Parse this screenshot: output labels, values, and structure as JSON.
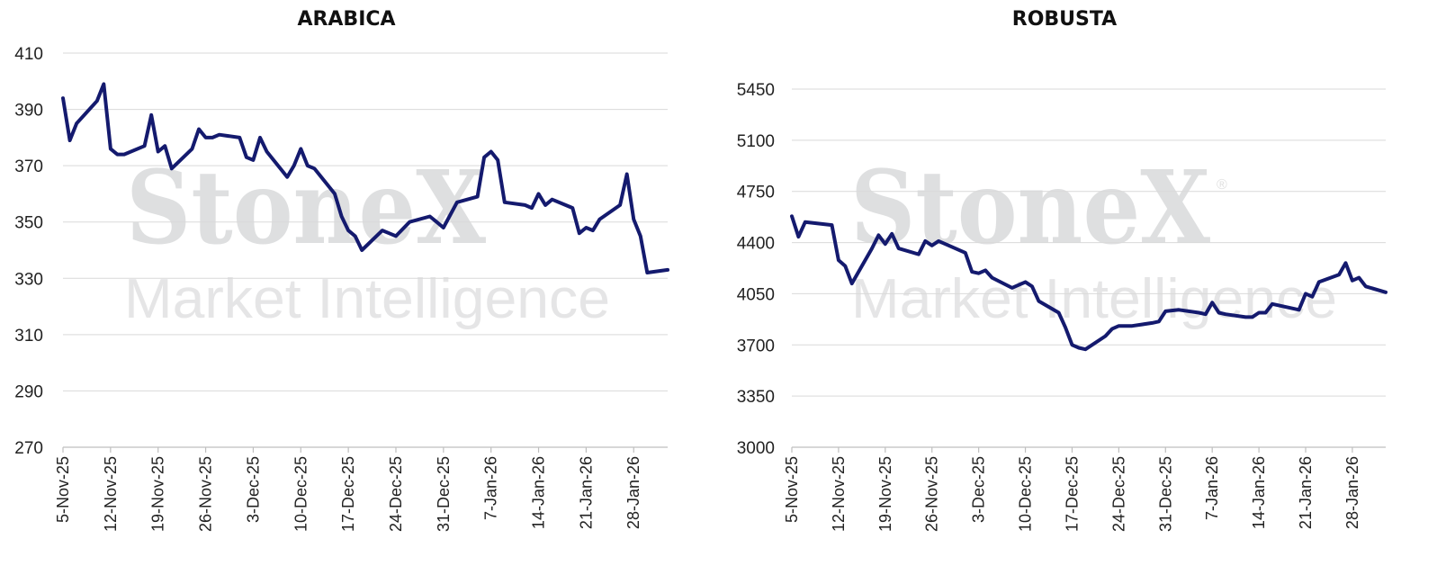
{
  "colors": {
    "series": "#141a6e",
    "watermark": "#dedfe0"
  },
  "watermark": {
    "logo": "StoneX",
    "sub": "Market Intelligence",
    "reg": "®"
  },
  "chart_data": [
    {
      "type": "line",
      "title": "ARABICA",
      "xlabel": "",
      "ylabel": "",
      "ylim": [
        270,
        410
      ],
      "yticks": [
        270,
        290,
        310,
        330,
        350,
        370,
        390,
        410
      ],
      "xlim": [
        "2025-11-05",
        "2026-02-02"
      ],
      "xticks": [
        {
          "date": "2025-11-05",
          "label": "5-Nov-25"
        },
        {
          "date": "2025-11-12",
          "label": "12-Nov-25"
        },
        {
          "date": "2025-11-19",
          "label": "19-Nov-25"
        },
        {
          "date": "2025-11-26",
          "label": "26-Nov-25"
        },
        {
          "date": "2025-12-03",
          "label": "3-Dec-25"
        },
        {
          "date": "2025-12-10",
          "label": "10-Dec-25"
        },
        {
          "date": "2025-12-17",
          "label": "17-Dec-25"
        },
        {
          "date": "2025-12-24",
          "label": "24-Dec-25"
        },
        {
          "date": "2025-12-31",
          "label": "31-Dec-25"
        },
        {
          "date": "2026-01-07",
          "label": "7-Jan-26"
        },
        {
          "date": "2026-01-14",
          "label": "14-Jan-26"
        },
        {
          "date": "2026-01-21",
          "label": "21-Jan-26"
        },
        {
          "date": "2026-01-28",
          "label": "28-Jan-26"
        }
      ],
      "grid": true,
      "series": [
        {
          "x": [
            "2025-11-05",
            "2025-11-06",
            "2025-11-07",
            "2025-11-10",
            "2025-11-11",
            "2025-11-12",
            "2025-11-13",
            "2025-11-14",
            "2025-11-17",
            "2025-11-18",
            "2025-11-19",
            "2025-11-20",
            "2025-11-21",
            "2025-11-24",
            "2025-11-25",
            "2025-11-26",
            "2025-11-27",
            "2025-11-28",
            "2025-12-01",
            "2025-12-02",
            "2025-12-03",
            "2025-12-04",
            "2025-12-05",
            "2025-12-08",
            "2025-12-09",
            "2025-12-10",
            "2025-12-11",
            "2025-12-12",
            "2025-12-15",
            "2025-12-16",
            "2025-12-17",
            "2025-12-18",
            "2025-12-19",
            "2025-12-22",
            "2025-12-23",
            "2025-12-24",
            "2025-12-26",
            "2025-12-29",
            "2025-12-30",
            "2025-12-31",
            "2026-01-02",
            "2026-01-05",
            "2026-01-06",
            "2026-01-07",
            "2026-01-08",
            "2026-01-09",
            "2026-01-12",
            "2026-01-13",
            "2026-01-14",
            "2026-01-15",
            "2026-01-16",
            "2026-01-19",
            "2026-01-20",
            "2026-01-21",
            "2026-01-22",
            "2026-01-23",
            "2026-01-26",
            "2026-01-27",
            "2026-01-28",
            "2026-01-29",
            "2026-01-30",
            "2026-02-02"
          ],
          "y": [
            394,
            379,
            385,
            393,
            399,
            376,
            374,
            374,
            377,
            388,
            375,
            377,
            369,
            376,
            383,
            380,
            380,
            381,
            380,
            373,
            372,
            380,
            375,
            366,
            370,
            376,
            370,
            369,
            360,
            352,
            347,
            345,
            340,
            347,
            346,
            345,
            350,
            352,
            350,
            348,
            357,
            359,
            373,
            375,
            372,
            357,
            356,
            355,
            360,
            356,
            358,
            355,
            346,
            348,
            347,
            351,
            356,
            367,
            351,
            345,
            332,
            333
          ]
        }
      ]
    },
    {
      "type": "line",
      "title": "ROBUSTA",
      "xlabel": "",
      "ylabel": "",
      "ylim": [
        3000,
        5450
      ],
      "yticks": [
        3000,
        3350,
        3700,
        4050,
        4400,
        4750,
        5100,
        5450
      ],
      "xlim": [
        "2025-11-05",
        "2026-02-02"
      ],
      "xticks": [
        {
          "date": "2025-11-05",
          "label": "5-Nov-25"
        },
        {
          "date": "2025-11-12",
          "label": "12-Nov-25"
        },
        {
          "date": "2025-11-19",
          "label": "19-Nov-25"
        },
        {
          "date": "2025-11-26",
          "label": "26-Nov-25"
        },
        {
          "date": "2025-12-03",
          "label": "3-Dec-25"
        },
        {
          "date": "2025-12-10",
          "label": "10-Dec-25"
        },
        {
          "date": "2025-12-17",
          "label": "17-Dec-25"
        },
        {
          "date": "2025-12-24",
          "label": "24-Dec-25"
        },
        {
          "date": "2025-12-31",
          "label": "31-Dec-25"
        },
        {
          "date": "2026-01-07",
          "label": "7-Jan-26"
        },
        {
          "date": "2026-01-14",
          "label": "14-Jan-26"
        },
        {
          "date": "2026-01-21",
          "label": "21-Jan-26"
        },
        {
          "date": "2026-01-28",
          "label": "28-Jan-26"
        }
      ],
      "grid": true,
      "series": [
        {
          "x": [
            "2025-11-05",
            "2025-11-06",
            "2025-11-07",
            "2025-11-11",
            "2025-11-12",
            "2025-11-13",
            "2025-11-14",
            "2025-11-17",
            "2025-11-18",
            "2025-11-19",
            "2025-11-20",
            "2025-11-21",
            "2025-11-24",
            "2025-11-25",
            "2025-11-26",
            "2025-11-27",
            "2025-11-28",
            "2025-12-01",
            "2025-12-02",
            "2025-12-03",
            "2025-12-04",
            "2025-12-05",
            "2025-12-08",
            "2025-12-09",
            "2025-12-10",
            "2025-12-11",
            "2025-12-12",
            "2025-12-15",
            "2025-12-16",
            "2025-12-17",
            "2025-12-18",
            "2025-12-19",
            "2025-12-22",
            "2025-12-23",
            "2025-12-24",
            "2025-12-26",
            "2025-12-29",
            "2025-12-30",
            "2025-12-31",
            "2026-01-02",
            "2026-01-05",
            "2026-01-06",
            "2026-01-07",
            "2026-01-08",
            "2026-01-09",
            "2026-01-12",
            "2026-01-13",
            "2026-01-14",
            "2026-01-15",
            "2026-01-16",
            "2026-01-19",
            "2026-01-20",
            "2026-01-21",
            "2026-01-22",
            "2026-01-23",
            "2026-01-26",
            "2026-01-27",
            "2026-01-28",
            "2026-01-29",
            "2026-01-30",
            "2026-02-02"
          ],
          "y": [
            4580,
            4440,
            4540,
            4520,
            4280,
            4240,
            4120,
            4360,
            4450,
            4390,
            4460,
            4360,
            4320,
            4410,
            4380,
            4410,
            4390,
            4330,
            4200,
            4190,
            4210,
            4160,
            4090,
            4110,
            4130,
            4100,
            4000,
            3920,
            3820,
            3700,
            3680,
            3670,
            3760,
            3810,
            3830,
            3830,
            3850,
            3860,
            3930,
            3940,
            3920,
            3910,
            3990,
            3920,
            3910,
            3890,
            3890,
            3920,
            3920,
            3980,
            3950,
            3940,
            4050,
            4030,
            4130,
            4180,
            4260,
            4140,
            4160,
            4100,
            4060
          ]
        }
      ]
    }
  ]
}
